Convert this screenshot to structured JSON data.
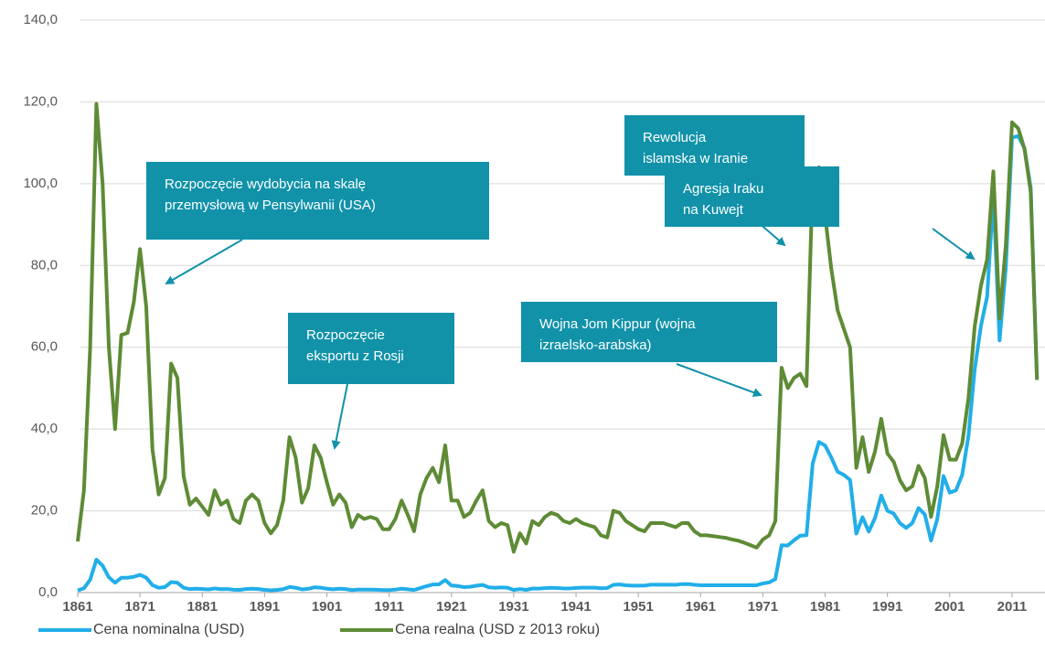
{
  "chart_data": {
    "type": "line",
    "x": [
      1861,
      1862,
      1863,
      1864,
      1865,
      1866,
      1867,
      1868,
      1869,
      1870,
      1871,
      1872,
      1873,
      1874,
      1875,
      1876,
      1877,
      1878,
      1879,
      1880,
      1881,
      1882,
      1883,
      1884,
      1885,
      1886,
      1887,
      1888,
      1889,
      1890,
      1891,
      1892,
      1893,
      1894,
      1895,
      1896,
      1897,
      1898,
      1899,
      1900,
      1901,
      1902,
      1903,
      1904,
      1905,
      1906,
      1907,
      1908,
      1909,
      1910,
      1911,
      1912,
      1913,
      1914,
      1915,
      1916,
      1917,
      1918,
      1919,
      1920,
      1921,
      1922,
      1923,
      1924,
      1925,
      1926,
      1927,
      1928,
      1929,
      1930,
      1931,
      1932,
      1933,
      1934,
      1935,
      1936,
      1937,
      1938,
      1939,
      1940,
      1941,
      1942,
      1943,
      1944,
      1945,
      1946,
      1947,
      1948,
      1949,
      1950,
      1951,
      1952,
      1953,
      1954,
      1955,
      1956,
      1957,
      1958,
      1959,
      1960,
      1961,
      1962,
      1963,
      1964,
      1965,
      1966,
      1967,
      1968,
      1969,
      1970,
      1971,
      1972,
      1973,
      1974,
      1975,
      1976,
      1977,
      1978,
      1979,
      1980,
      1981,
      1982,
      1983,
      1984,
      1985,
      1986,
      1987,
      1988,
      1989,
      1990,
      1991,
      1992,
      1993,
      1994,
      1995,
      1996,
      1997,
      1998,
      1999,
      2000,
      2001,
      2002,
      2003,
      2004,
      2005,
      2006,
      2007,
      2008,
      2009,
      2010,
      2011,
      2012,
      2013,
      2014,
      2015
    ],
    "series": [
      {
        "name": "Cena nominalna (USD)",
        "color": "#21aee9",
        "values": [
          0.49,
          1.05,
          3.15,
          8.06,
          6.59,
          3.74,
          2.41,
          3.63,
          3.64,
          3.86,
          4.34,
          3.64,
          1.83,
          1.17,
          1.35,
          2.56,
          2.42,
          1.19,
          0.86,
          0.95,
          0.86,
          0.78,
          1.0,
          0.84,
          0.88,
          0.71,
          0.67,
          0.88,
          0.94,
          0.87,
          0.67,
          0.56,
          0.64,
          0.84,
          1.36,
          1.18,
          0.79,
          0.91,
          1.29,
          1.19,
          0.96,
          0.8,
          0.94,
          0.86,
          0.62,
          0.73,
          0.72,
          0.72,
          0.7,
          0.61,
          0.61,
          0.74,
          0.95,
          0.81,
          0.64,
          1.1,
          1.56,
          1.98,
          2.01,
          3.07,
          1.73,
          1.61,
          1.34,
          1.43,
          1.68,
          1.88,
          1.3,
          1.17,
          1.27,
          1.19,
          0.65,
          0.87,
          0.67,
          1.0,
          0.97,
          1.09,
          1.18,
          1.13,
          1.02,
          1.02,
          1.14,
          1.19,
          1.2,
          1.21,
          1.05,
          1.12,
          1.9,
          1.99,
          1.78,
          1.71,
          1.71,
          1.71,
          1.93,
          1.93,
          1.93,
          1.93,
          1.9,
          2.08,
          2.08,
          1.9,
          1.8,
          1.8,
          1.8,
          1.8,
          1.8,
          1.8,
          1.8,
          1.8,
          1.8,
          1.8,
          2.24,
          2.48,
          3.29,
          11.58,
          11.53,
          12.8,
          13.92,
          14.02,
          31.61,
          36.83,
          35.93,
          32.97,
          29.55,
          28.78,
          27.56,
          14.43,
          18.44,
          14.92,
          18.23,
          23.73,
          20.0,
          19.32,
          16.97,
          15.82,
          17.02,
          20.67,
          19.09,
          12.72,
          17.97,
          28.5,
          24.44,
          25.02,
          28.83,
          38.27,
          54.52,
          65.14,
          72.39,
          97.26,
          61.67,
          79.5,
          111.26,
          111.67,
          108.66,
          98.95,
          52.39
        ]
      },
      {
        "name": "Cena realna (USD z 2013 roku)",
        "color": "#5e8b35",
        "values": [
          12.5,
          25,
          60,
          119.5,
          100,
          60,
          40,
          63,
          63.5,
          71,
          84,
          70,
          35,
          24,
          28,
          56,
          52.5,
          28.5,
          21.5,
          23,
          21,
          19,
          25,
          21.5,
          22.5,
          18,
          17,
          22.5,
          24,
          22.5,
          17,
          14.5,
          16.5,
          22.5,
          38,
          33,
          22,
          25.5,
          36,
          33,
          27,
          21.5,
          24,
          22,
          16,
          19,
          18,
          18.5,
          18,
          15.5,
          15.5,
          18,
          22.5,
          19,
          15,
          24,
          28,
          30.5,
          27,
          36,
          22.5,
          22.5,
          18.5,
          19.5,
          22.5,
          25,
          17.5,
          16,
          17,
          16.5,
          10,
          14.5,
          12,
          17.5,
          16.5,
          18.5,
          19.5,
          19,
          17.5,
          17,
          18,
          17,
          16.5,
          16,
          14,
          13.5,
          20,
          19.5,
          17.5,
          16.5,
          15.5,
          15,
          17,
          17,
          17,
          16.5,
          16,
          17,
          17,
          15,
          14,
          14,
          13.8,
          13.6,
          13.4,
          13,
          12.7,
          12.2,
          11.6,
          11,
          13,
          14,
          17.5,
          55,
          50,
          52.5,
          53.5,
          50.5,
          101.5,
          104,
          92,
          79,
          69,
          64.5,
          60,
          30.5,
          38,
          29.5,
          34.5,
          42.5,
          34,
          32,
          27.5,
          25,
          26,
          31,
          28,
          18.5,
          26,
          38.5,
          32.5,
          32.5,
          36.5,
          47.5,
          65,
          75,
          81.5,
          103,
          67,
          85,
          115,
          113.5,
          108.5,
          98,
          52
        ]
      }
    ],
    "xlim": [
      1861,
      2016
    ],
    "xticks": [
      1861,
      1871,
      1881,
      1891,
      1901,
      1911,
      1921,
      1931,
      1941,
      1951,
      1961,
      1971,
      1981,
      1991,
      2001,
      2011
    ],
    "ylim": [
      0,
      140
    ],
    "yticks": [
      {
        "value": 0,
        "label": "0,0"
      },
      {
        "value": 20,
        "label": "20,0"
      },
      {
        "value": 40,
        "label": "40,0"
      },
      {
        "value": 60,
        "label": "60,0"
      },
      {
        "value": 80,
        "label": "80,0"
      },
      {
        "value": 100,
        "label": "100,0"
      },
      {
        "value": 120,
        "label": "120,0"
      },
      {
        "value": 140,
        "label": "140,0"
      }
    ],
    "grid": true,
    "legend": "bottom",
    "annotations": [
      {
        "lines": [
          "Rozpoczęcie wydobycia na skalę",
          "przemysłową w Pensylwanii (USA)"
        ]
      },
      {
        "lines": [
          "Rozpoczęcie",
          "eksportu  z Rosji"
        ]
      },
      {
        "lines": [
          "Rewolucja",
          "islamska w Iranie"
        ]
      },
      {
        "lines": [
          "Agresja Iraku",
          "na Kuwejt"
        ]
      },
      {
        "lines": [
          "Wojna Jom Kippur (wojna",
          "izraelsko-arabska)"
        ]
      }
    ]
  }
}
